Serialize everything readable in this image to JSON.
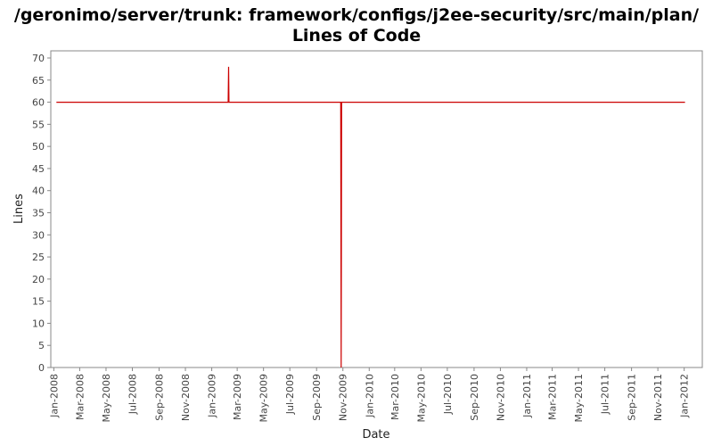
{
  "chart_data": {
    "type": "line",
    "title": "/geronimo/server/trunk: framework/configs/j2ee-security/src/main/plan/",
    "subtitle": "Lines of Code",
    "xlabel": "Date",
    "ylabel": "Lines",
    "ylim": [
      0,
      70
    ],
    "yticks": [
      0,
      5,
      10,
      15,
      20,
      25,
      30,
      35,
      40,
      45,
      50,
      55,
      60,
      65,
      70
    ],
    "xlim": [
      "2007-12-25",
      "2012-02-12"
    ],
    "xticks": [
      "Jan-2008",
      "Mar-2008",
      "May-2008",
      "Jul-2008",
      "Sep-2008",
      "Nov-2008",
      "Jan-2009",
      "Mar-2009",
      "May-2009",
      "Jul-2009",
      "Sep-2009",
      "Nov-2009",
      "Jan-2010",
      "Mar-2010",
      "May-2010",
      "Jul-2010",
      "Sep-2010",
      "Nov-2010",
      "Jan-2011",
      "Mar-2011",
      "May-2011",
      "Jul-2011",
      "Sep-2011",
      "Nov-2011",
      "Jan-2012"
    ],
    "xtick_dates": [
      "2008-01-01",
      "2008-03-01",
      "2008-05-01",
      "2008-07-01",
      "2008-09-01",
      "2008-11-01",
      "2009-01-01",
      "2009-03-01",
      "2009-05-01",
      "2009-07-01",
      "2009-09-01",
      "2009-11-01",
      "2010-01-01",
      "2010-03-01",
      "2010-05-01",
      "2010-07-01",
      "2010-09-01",
      "2010-11-01",
      "2011-01-01",
      "2011-03-01",
      "2011-05-01",
      "2011-07-01",
      "2011-09-01",
      "2011-11-01",
      "2012-01-01"
    ],
    "series": [
      {
        "color": "#cc0000",
        "points": [
          {
            "x": "2008-01-07",
            "y": 60
          },
          {
            "x": "2009-02-08",
            "y": 60
          },
          {
            "x": "2009-02-09",
            "y": 68
          },
          {
            "x": "2009-02-10",
            "y": 60
          },
          {
            "x": "2009-10-27",
            "y": 60
          },
          {
            "x": "2009-10-28",
            "y": 0
          },
          {
            "x": "2009-10-29",
            "y": 60
          },
          {
            "x": "2012-01-03",
            "y": 60
          }
        ]
      }
    ],
    "grid": false,
    "legend": "none"
  }
}
